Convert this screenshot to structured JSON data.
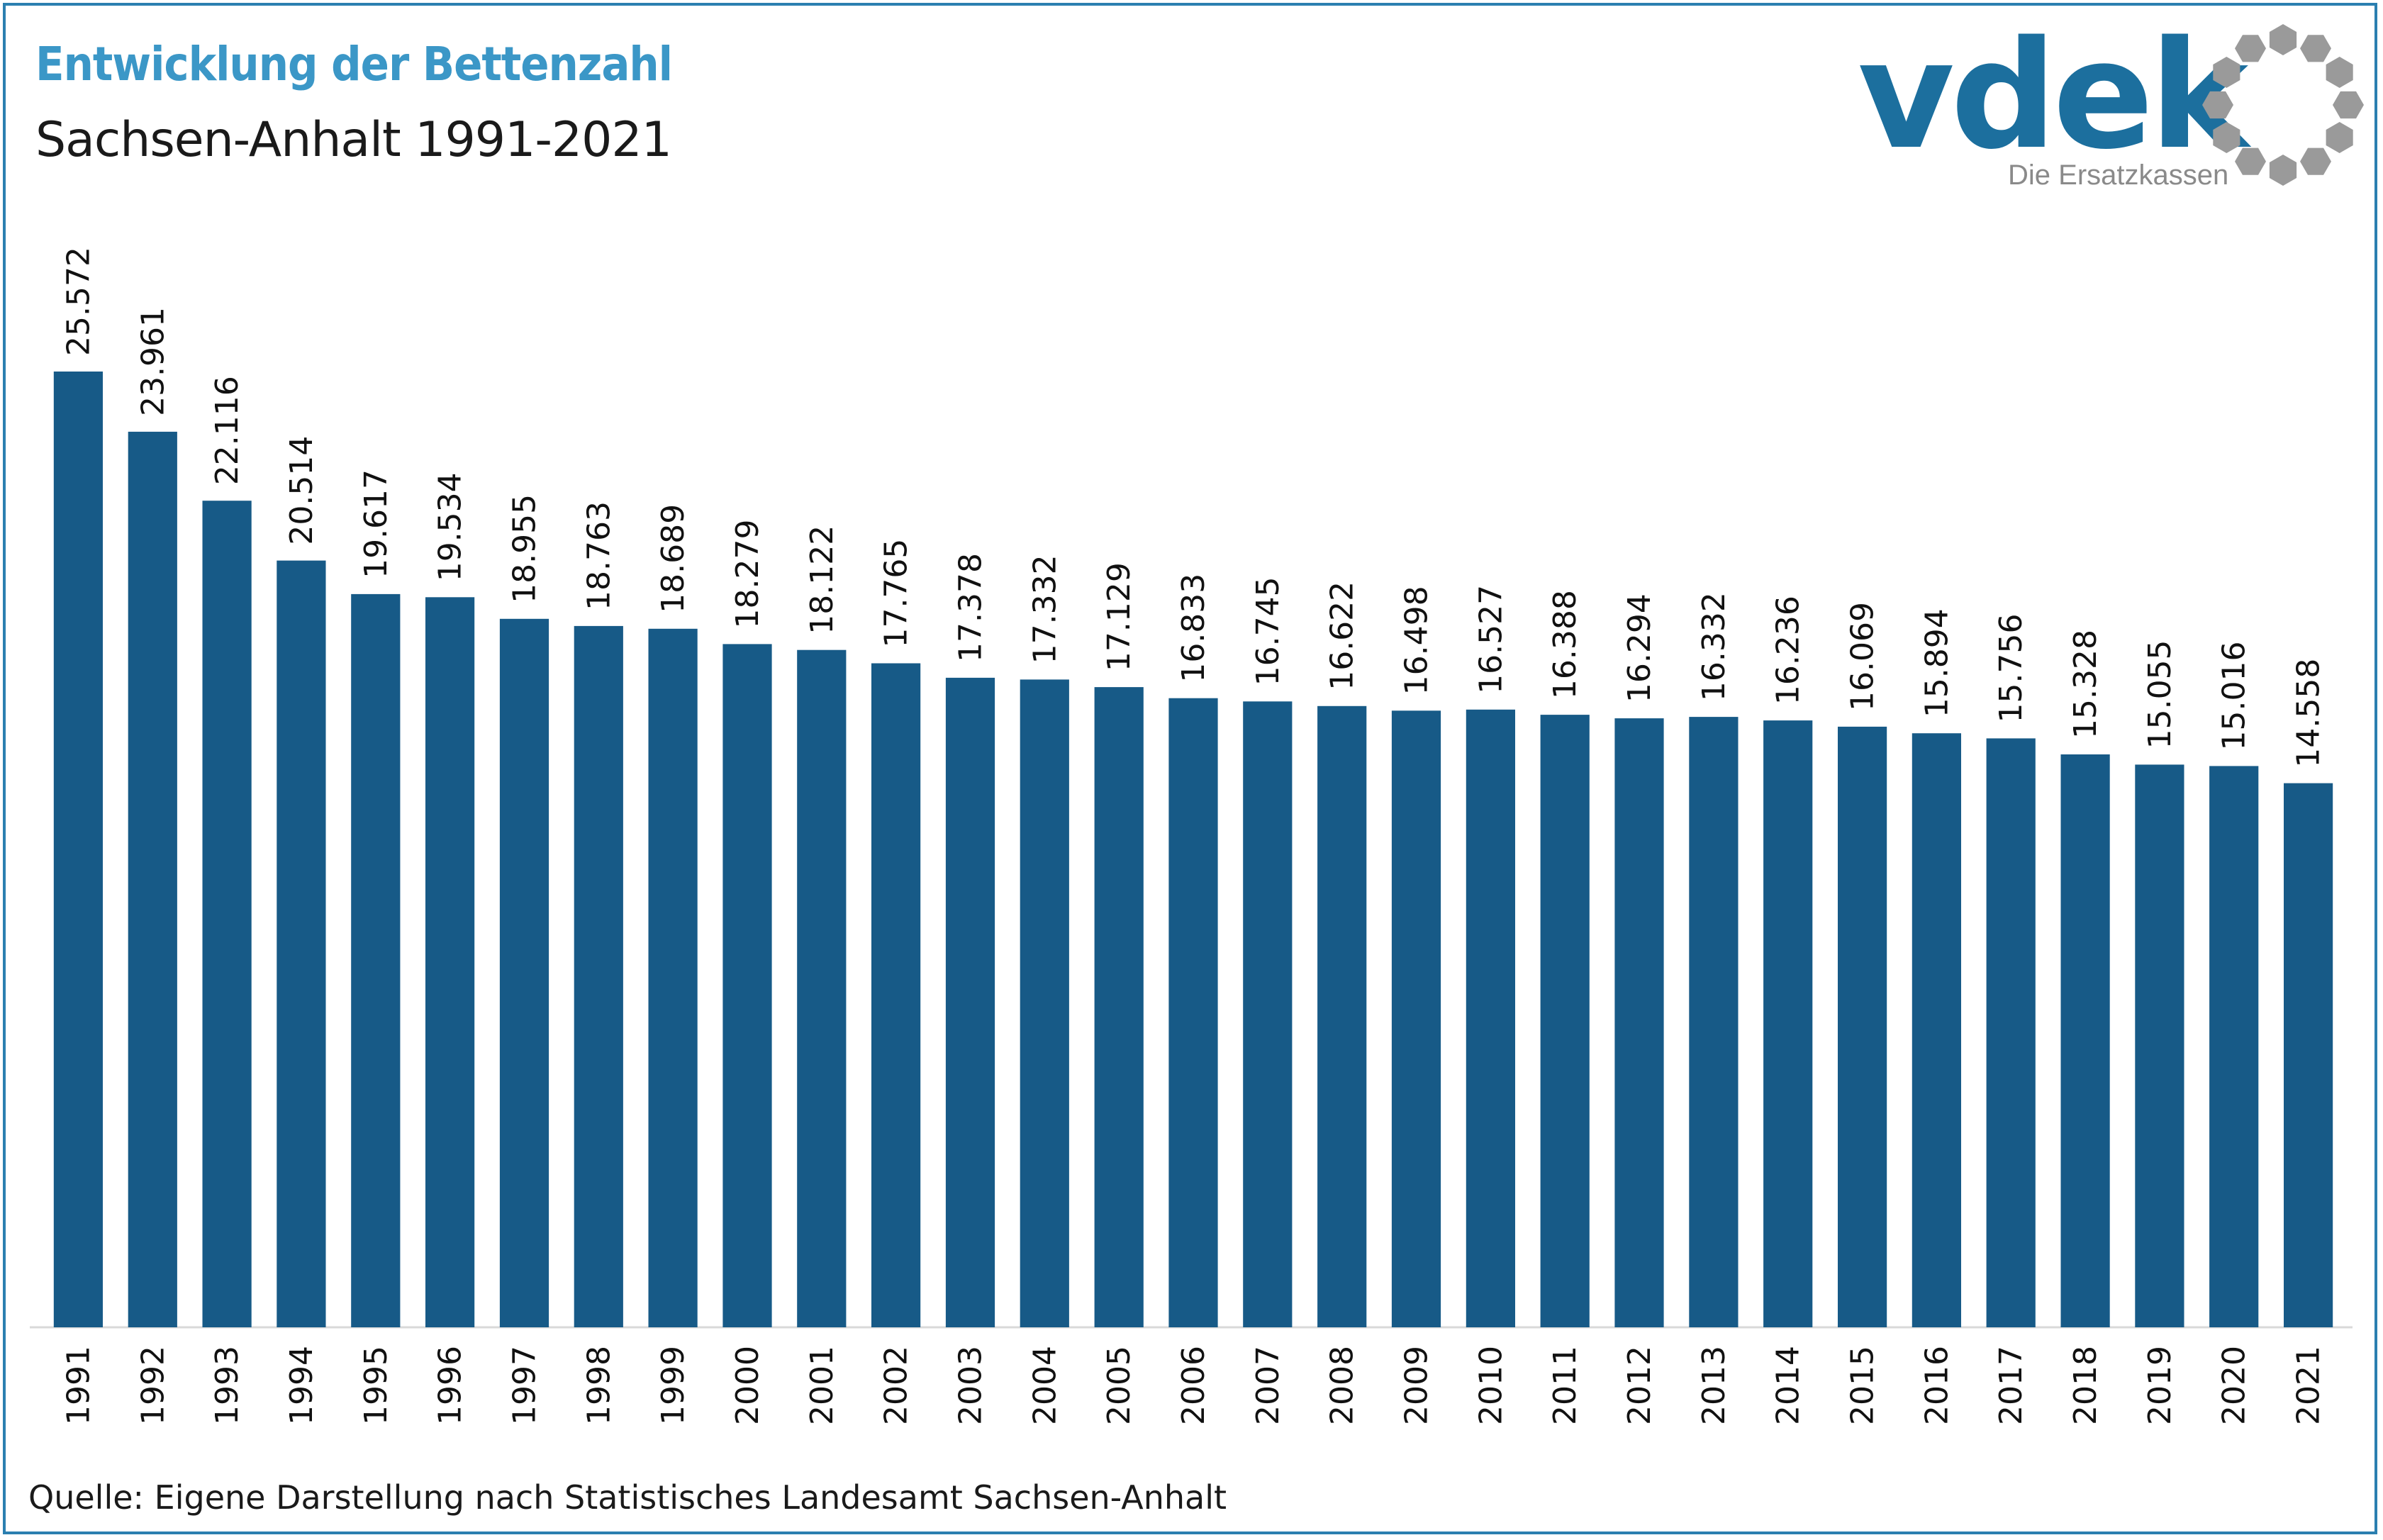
{
  "header": {
    "title": "Entwicklung der Bettenzahl",
    "subtitle": "Sachsen-Anhalt 1991-2021"
  },
  "logo": {
    "wordmark": "vdek",
    "tagline": "Die Ersatzkassen"
  },
  "footer": {
    "source": "Quelle: Eigene Darstellung nach Statistisches Landesamt Sachsen-Anhalt"
  },
  "colors": {
    "bar": "#175a87",
    "title": "#3b97c7",
    "frame": "#2b7fb0",
    "logo_blue": "#1c6f9e",
    "logo_gray": "#9a9a9a"
  },
  "chart_data": {
    "type": "bar",
    "title": "Entwicklung der Bettenzahl",
    "subtitle": "Sachsen-Anhalt 1991-2021",
    "xlabel": "",
    "ylabel": "",
    "ylim": [
      0,
      25572
    ],
    "grid": false,
    "categories": [
      "1991",
      "1992",
      "1993",
      "1994",
      "1995",
      "1996",
      "1997",
      "1998",
      "1999",
      "2000",
      "2001",
      "2002",
      "2003",
      "2004",
      "2005",
      "2006",
      "2007",
      "2008",
      "2009",
      "2010",
      "2011",
      "2012",
      "2013",
      "2014",
      "2015",
      "2016",
      "2017",
      "2018",
      "2019",
      "2020",
      "2021"
    ],
    "values": [
      25572,
      23961,
      22116,
      20514,
      19617,
      19534,
      18955,
      18763,
      18689,
      18279,
      18122,
      17765,
      17378,
      17332,
      17129,
      16833,
      16745,
      16622,
      16498,
      16527,
      16388,
      16294,
      16332,
      16236,
      16069,
      15894,
      15756,
      15328,
      15055,
      15016,
      14558
    ],
    "labels": [
      "25.572",
      "23.961",
      "22.116",
      "20.514",
      "19.617",
      "19.534",
      "18.955",
      "18.763",
      "18.689",
      "18.279",
      "18.122",
      "17.765",
      "17.378",
      "17.332",
      "17.129",
      "16.833",
      "16.745",
      "16.622",
      "16.498",
      "16.527",
      "16.388",
      "16.294",
      "16.332",
      "16.236",
      "16.069",
      "15.894",
      "15.756",
      "15.328",
      "15.055",
      "15.016",
      "14.558"
    ]
  }
}
